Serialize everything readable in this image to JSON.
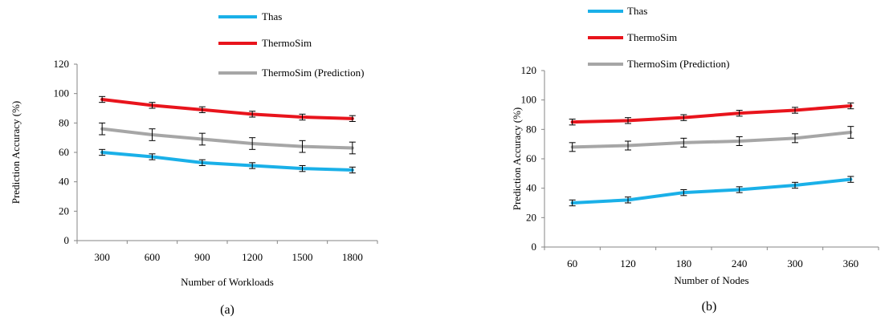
{
  "chart_data": [
    {
      "type": "line",
      "panel_label": "(a)",
      "xlabel": "Number of Workloads",
      "ylabel": "Prediction Accuracy (%)",
      "categories": [
        "300",
        "600",
        "900",
        "1200",
        "1500",
        "1800"
      ],
      "ylim": [
        0,
        120
      ],
      "yticks": [
        "0",
        "20",
        "40",
        "60",
        "80",
        "100",
        "120"
      ],
      "legend_position": "top",
      "grid": false,
      "series": [
        {
          "name": "Thas",
          "color": "#1ab0e8",
          "values": [
            60,
            57,
            53,
            51,
            49,
            48
          ],
          "errors": [
            2,
            2,
            2,
            2,
            2,
            2
          ]
        },
        {
          "name": "ThermoSim",
          "color": "#e8141c",
          "values": [
            96,
            92,
            89,
            86,
            84,
            83
          ],
          "errors": [
            2,
            2,
            2,
            2,
            2,
            2
          ]
        },
        {
          "name": "ThermoSim (Prediction)",
          "color": "#a6a6a6",
          "values": [
            76,
            72,
            69,
            66,
            64,
            63
          ],
          "errors": [
            4,
            4,
            4,
            4,
            4,
            4
          ]
        }
      ]
    },
    {
      "type": "line",
      "panel_label": "(b)",
      "xlabel": "Number of Nodes",
      "ylabel": "Prediction Accuracy (%)",
      "categories": [
        "60",
        "120",
        "180",
        "240",
        "300",
        "360"
      ],
      "ylim": [
        0,
        120
      ],
      "yticks": [
        "0",
        "20",
        "40",
        "60",
        "80",
        "100",
        "120"
      ],
      "legend_position": "top",
      "grid": false,
      "series": [
        {
          "name": "Thas",
          "color": "#1ab0e8",
          "values": [
            30,
            32,
            37,
            39,
            42,
            46
          ],
          "errors": [
            2,
            2,
            2,
            2,
            2,
            2
          ]
        },
        {
          "name": "ThermoSim",
          "color": "#e8141c",
          "values": [
            85,
            86,
            88,
            91,
            93,
            96
          ],
          "errors": [
            2,
            2,
            2,
            2,
            2,
            2
          ]
        },
        {
          "name": "ThermoSim (Prediction)",
          "color": "#a6a6a6",
          "values": [
            68,
            69,
            71,
            72,
            74,
            78
          ],
          "errors": [
            3,
            3,
            3,
            3,
            3,
            4
          ]
        }
      ]
    }
  ]
}
